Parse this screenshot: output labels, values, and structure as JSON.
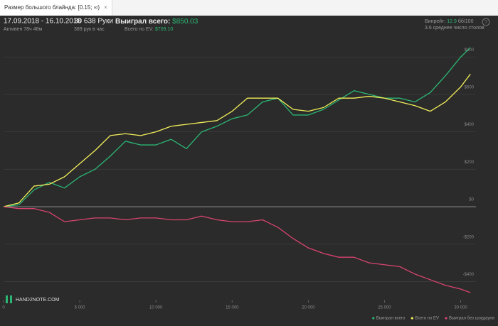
{
  "tab": {
    "title": "Размер большого блайнда: [0.15; ∞)",
    "close": "×"
  },
  "header": {
    "period": "17.09.2018 - 16.10.2018",
    "active": "Активен 78ч 46м",
    "hands": "30 638 Руки",
    "rate": "389 рук в час",
    "won_label": "Выиграл всего:",
    "won_value": "$850.03",
    "ev_label": "Всего по EV:",
    "ev_value": "$709.10",
    "winrate_label": "Винрейт:",
    "winrate_value": "12.9",
    "winrate_unit": "бб/100",
    "tables": "3.6 среднее число столов",
    "help": "?"
  },
  "logo": "HAND2NOTE.COM",
  "chart_data": {
    "type": "line",
    "x": [
      0,
      1000,
      2000,
      3000,
      4000,
      5000,
      6000,
      7000,
      8000,
      9000,
      10000,
      11000,
      12000,
      13000,
      14000,
      15000,
      16000,
      17000,
      18000,
      19000,
      20000,
      21000,
      22000,
      23000,
      24000,
      25000,
      26000,
      27000,
      28000,
      29000,
      30000,
      30638
    ],
    "series": [
      {
        "name": "Выиграл всего",
        "color": "#2bb673",
        "values": [
          0,
          10,
          90,
          130,
          100,
          160,
          200,
          270,
          350,
          330,
          330,
          360,
          310,
          400,
          430,
          470,
          490,
          560,
          580,
          490,
          490,
          520,
          570,
          620,
          600,
          580,
          580,
          560,
          610,
          700,
          800,
          850
        ]
      },
      {
        "name": "Всего по EV",
        "color": "#f2ee5a",
        "values": [
          0,
          20,
          110,
          120,
          160,
          230,
          300,
          380,
          390,
          380,
          400,
          430,
          440,
          450,
          460,
          510,
          580,
          580,
          580,
          520,
          510,
          530,
          580,
          580,
          590,
          580,
          560,
          540,
          510,
          560,
          640,
          709
        ]
      },
      {
        "name": "Выиграл без шоудауна",
        "color": "#d9446f",
        "values": [
          0,
          -10,
          -10,
          -30,
          -80,
          -70,
          -60,
          -60,
          -70,
          -60,
          -60,
          -70,
          -70,
          -50,
          -70,
          -80,
          -80,
          -70,
          -110,
          -170,
          -220,
          -250,
          -270,
          -270,
          -300,
          -310,
          -320,
          -360,
          -390,
          -420,
          -440,
          -459
        ]
      }
    ],
    "xlim": [
      0,
      31000
    ],
    "ylim": [
      -500,
      920
    ],
    "xticks": [
      0,
      {
        "value": 5000,
        "label": "5 000"
      },
      {
        "value": 10000,
        "label": "10 000"
      },
      {
        "value": 15000,
        "label": "15 000"
      },
      {
        "value": 20000,
        "label": "20 000"
      },
      {
        "value": 25000,
        "label": "25 000"
      },
      {
        "value": 30000,
        "label": "30 000"
      }
    ],
    "yticks": [
      {
        "value": -400,
        "label": "-$400"
      },
      {
        "value": -200,
        "label": "-$200"
      },
      {
        "value": 0,
        "label": "$0"
      },
      {
        "value": 200,
        "label": "$200"
      },
      {
        "value": 400,
        "label": "$400"
      },
      {
        "value": 600,
        "label": "$600"
      },
      {
        "value": 800,
        "label": "$800"
      }
    ],
    "grid": true,
    "legend": "bottom-right"
  }
}
